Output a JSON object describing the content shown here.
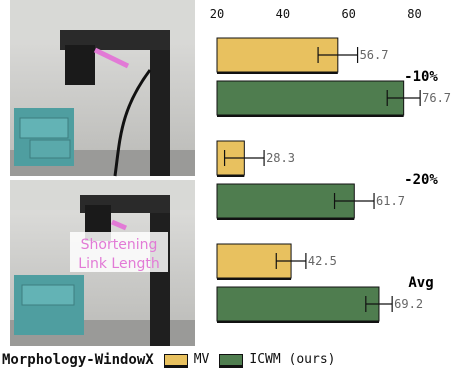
{
  "photo_caption": [
    "Shortening",
    "Link Length"
  ],
  "footer_title": "Morphology-WindowX",
  "colors": {
    "MV": "#e8c15f",
    "ICWM": "#4f7d4f",
    "caption": "#e27ad6"
  },
  "chart_data": {
    "type": "bar",
    "orientation": "horizontal",
    "xlim": [
      20,
      85
    ],
    "x_ticks": [
      20,
      40,
      60,
      80
    ],
    "groups": [
      {
        "label": "-10%",
        "bars": [
          {
            "series": "MV",
            "value": 56.7,
            "value_label": "56.7",
            "err": 6
          },
          {
            "series": "ICWM (ours)",
            "value": 76.7,
            "value_label": "76.7",
            "err": 5
          }
        ]
      },
      {
        "label": "-20%",
        "bars": [
          {
            "series": "MV",
            "value": 28.3,
            "value_label": "28.3",
            "err": 6
          },
          {
            "series": "ICWM (ours)",
            "value": 61.7,
            "value_label": "61.7",
            "err": 6
          }
        ]
      },
      {
        "label": "Avg",
        "bars": [
          {
            "series": "MV",
            "value": 42.5,
            "value_label": "42.5",
            "err": 4.5
          },
          {
            "series": "ICWM (ours)",
            "value": 69.2,
            "value_label": "69.2",
            "err": 4
          }
        ]
      }
    ],
    "legend": [
      {
        "name": "MV",
        "color": "#e8c15f"
      },
      {
        "name": "ICWM (ours)",
        "color": "#4f7d4f"
      }
    ]
  }
}
